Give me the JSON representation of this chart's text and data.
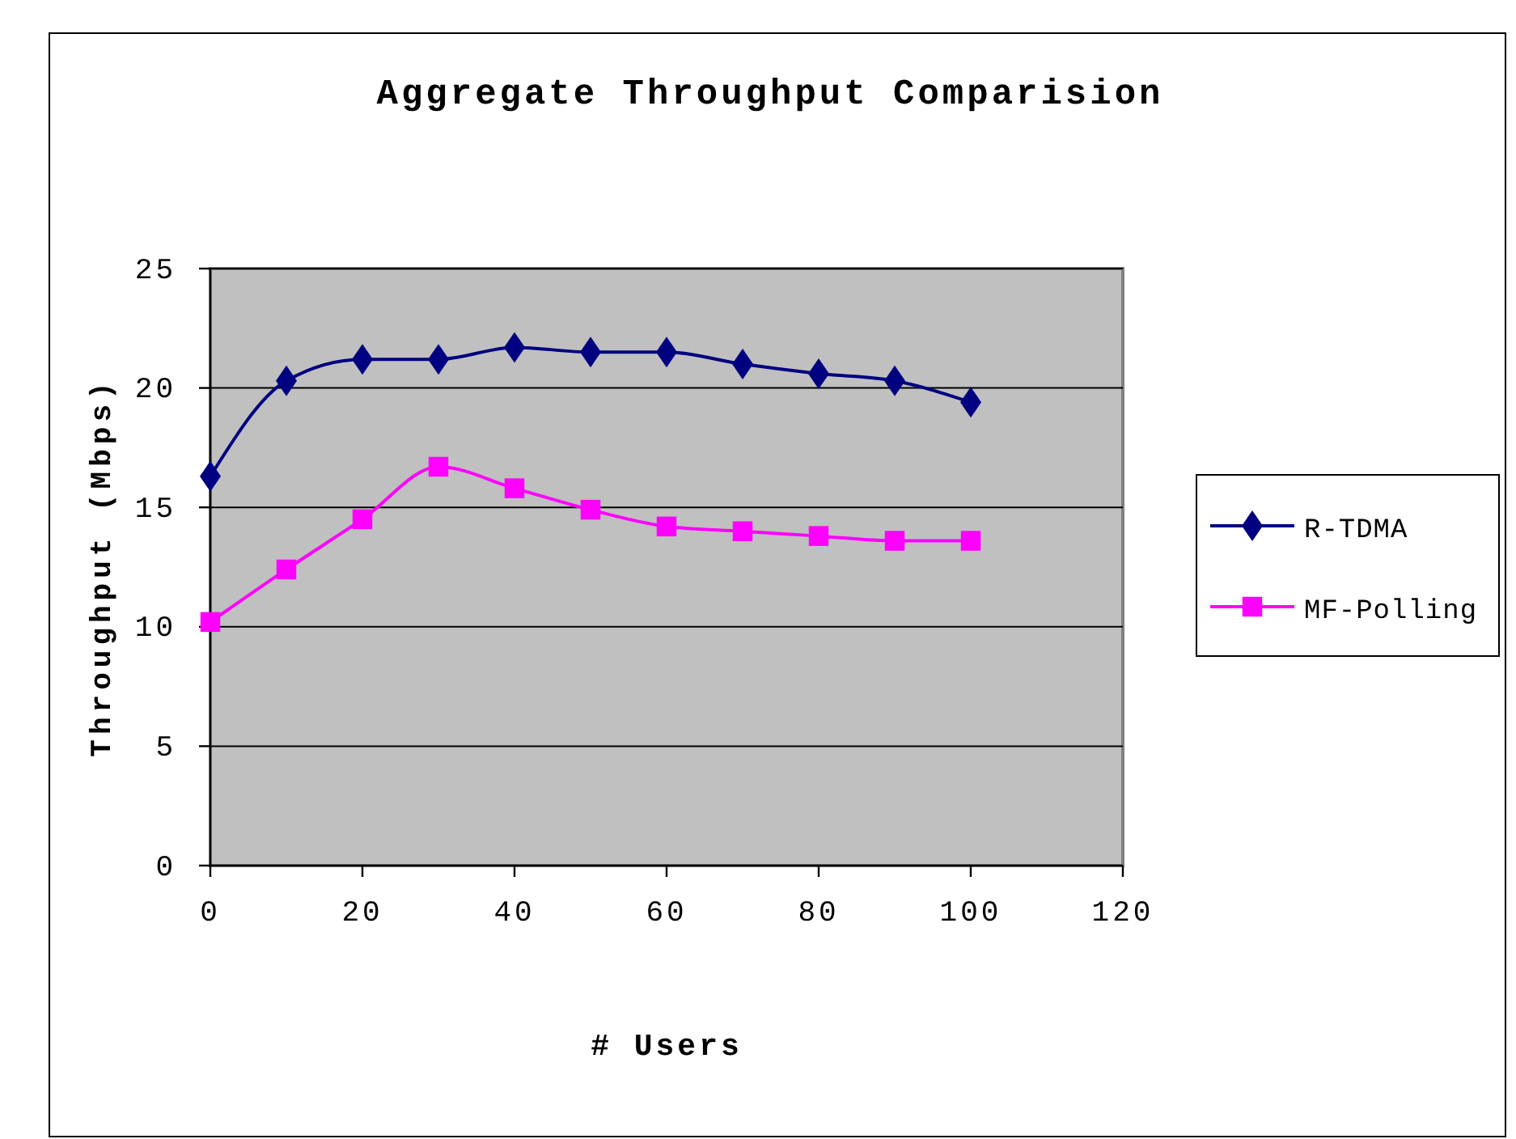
{
  "chart_data": {
    "type": "line",
    "title": "Aggregate Throughput Comparision",
    "xlabel": "# Users",
    "ylabel": "Throughput (Mbps)",
    "x": [
      0,
      10,
      20,
      30,
      40,
      50,
      60,
      70,
      80,
      90,
      100
    ],
    "series": [
      {
        "name": "R-TDMA",
        "color": "#000080",
        "marker": "diamond",
        "values": [
          16.3,
          20.3,
          21.2,
          21.2,
          21.7,
          21.5,
          21.5,
          21.0,
          20.6,
          20.3,
          19.4
        ]
      },
      {
        "name": "MF-Polling",
        "color": "#ff00ff",
        "marker": "square",
        "values": [
          10.2,
          12.4,
          14.5,
          16.7,
          15.8,
          14.9,
          14.2,
          14.0,
          13.8,
          13.6,
          13.6
        ]
      }
    ],
    "xlim": [
      0,
      120
    ],
    "xticks": [
      0,
      20,
      40,
      60,
      80,
      100,
      120
    ],
    "ylim": [
      0,
      25
    ],
    "yticks": [
      0,
      5,
      10,
      15,
      20,
      25
    ],
    "grid": "y",
    "legend": "right",
    "line_style": "solid"
  }
}
